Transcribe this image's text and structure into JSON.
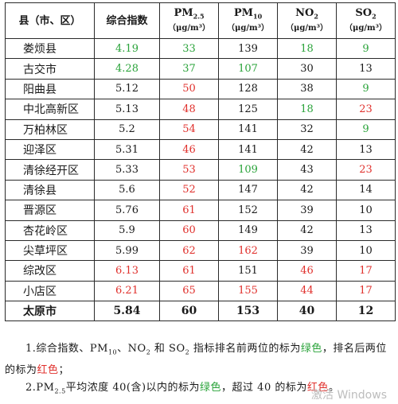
{
  "table": {
    "headers": {
      "county": "县（市、区）",
      "index": "综合指数",
      "pm25": "PM",
      "pm25_sub": "2.5",
      "pm10": "PM",
      "pm10_sub": "10",
      "no2": "NO",
      "no2_sub": "2",
      "so2": "SO",
      "so2_sub": "2",
      "unit_pm25": "（μg/m³）",
      "unit_pm10": "（μg/m³）",
      "unit_no2": "（μg/m³）",
      "unit_so2": "（μg/m³）"
    },
    "rows": [
      {
        "county": "娄烦县",
        "index": "4.19",
        "pm25": "33",
        "pm10": "139",
        "no2": "18",
        "so2": "9",
        "c": [
          "green",
          "green",
          "",
          "green",
          "green"
        ]
      },
      {
        "county": "古交市",
        "index": "4.28",
        "pm25": "37",
        "pm10": "107",
        "no2": "30",
        "so2": "13",
        "c": [
          "green",
          "green",
          "green",
          "",
          ""
        ]
      },
      {
        "county": "阳曲县",
        "index": "5.12",
        "pm25": "50",
        "pm10": "128",
        "no2": "38",
        "so2": "9",
        "c": [
          "",
          "red",
          "",
          "",
          "green"
        ]
      },
      {
        "county": "中北高新区",
        "index": "5.13",
        "pm25": "48",
        "pm10": "125",
        "no2": "18",
        "so2": "23",
        "c": [
          "",
          "red",
          "",
          "green",
          "red"
        ]
      },
      {
        "county": "万柏林区",
        "index": "5.2",
        "pm25": "54",
        "pm10": "141",
        "no2": "32",
        "so2": "9",
        "c": [
          "",
          "red",
          "",
          "",
          "green"
        ]
      },
      {
        "county": "迎泽区",
        "index": "5.31",
        "pm25": "46",
        "pm10": "141",
        "no2": "42",
        "so2": "13",
        "c": [
          "",
          "red",
          "",
          "",
          ""
        ]
      },
      {
        "county": "清徐经开区",
        "index": "5.33",
        "pm25": "53",
        "pm10": "109",
        "no2": "43",
        "so2": "23",
        "c": [
          "",
          "red",
          "green",
          "",
          "red"
        ]
      },
      {
        "county": "清徐县",
        "index": "5.6",
        "pm25": "52",
        "pm10": "147",
        "no2": "42",
        "so2": "14",
        "c": [
          "",
          "red",
          "",
          "",
          ""
        ]
      },
      {
        "county": "晋源区",
        "index": "5.76",
        "pm25": "61",
        "pm10": "152",
        "no2": "39",
        "so2": "10",
        "c": [
          "",
          "red",
          "",
          "",
          ""
        ]
      },
      {
        "county": "杏花岭区",
        "index": "5.9",
        "pm25": "60",
        "pm10": "149",
        "no2": "42",
        "so2": "13",
        "c": [
          "",
          "red",
          "",
          "",
          ""
        ]
      },
      {
        "county": "尖草坪区",
        "index": "5.99",
        "pm25": "62",
        "pm10": "162",
        "no2": "39",
        "so2": "10",
        "c": [
          "",
          "red",
          "red",
          "",
          ""
        ]
      },
      {
        "county": "综改区",
        "index": "6.13",
        "pm25": "61",
        "pm10": "151",
        "no2": "46",
        "so2": "17",
        "c": [
          "red",
          "red",
          "",
          "red",
          "red"
        ]
      },
      {
        "county": "小店区",
        "index": "6.21",
        "pm25": "65",
        "pm10": "155",
        "no2": "44",
        "so2": "17",
        "c": [
          "red",
          "red",
          "red",
          "red",
          "red"
        ]
      }
    ],
    "total": {
      "county": "太原市",
      "index": "5.84",
      "pm25": "60",
      "pm10": "153",
      "no2": "40",
      "so2": "12"
    }
  },
  "notes": {
    "n1_a": "1.综合指数、PM",
    "n1_sub": "10",
    "n1_b": "、NO",
    "n1_sub2": "2",
    "n1_c": " 和 SO",
    "n1_sub3": "2",
    "n1_d": " 指标排名前两位的标为",
    "n1_green": "绿色",
    "n1_e": "，排名后两位的标为",
    "n1_red": "红色",
    "n1_f": "；",
    "n2_a": "2.PM",
    "n2_sub": "2.5",
    "n2_b": "平均浓度 40(含)以内的标为",
    "n2_green": "绿色",
    "n2_c": "，超过 40 的标为",
    "n2_red": "红色",
    "n2_d": "。"
  },
  "watermark": "激活 Windows",
  "colors": {
    "good": "#2aa33a",
    "bad": "#e0302c"
  }
}
